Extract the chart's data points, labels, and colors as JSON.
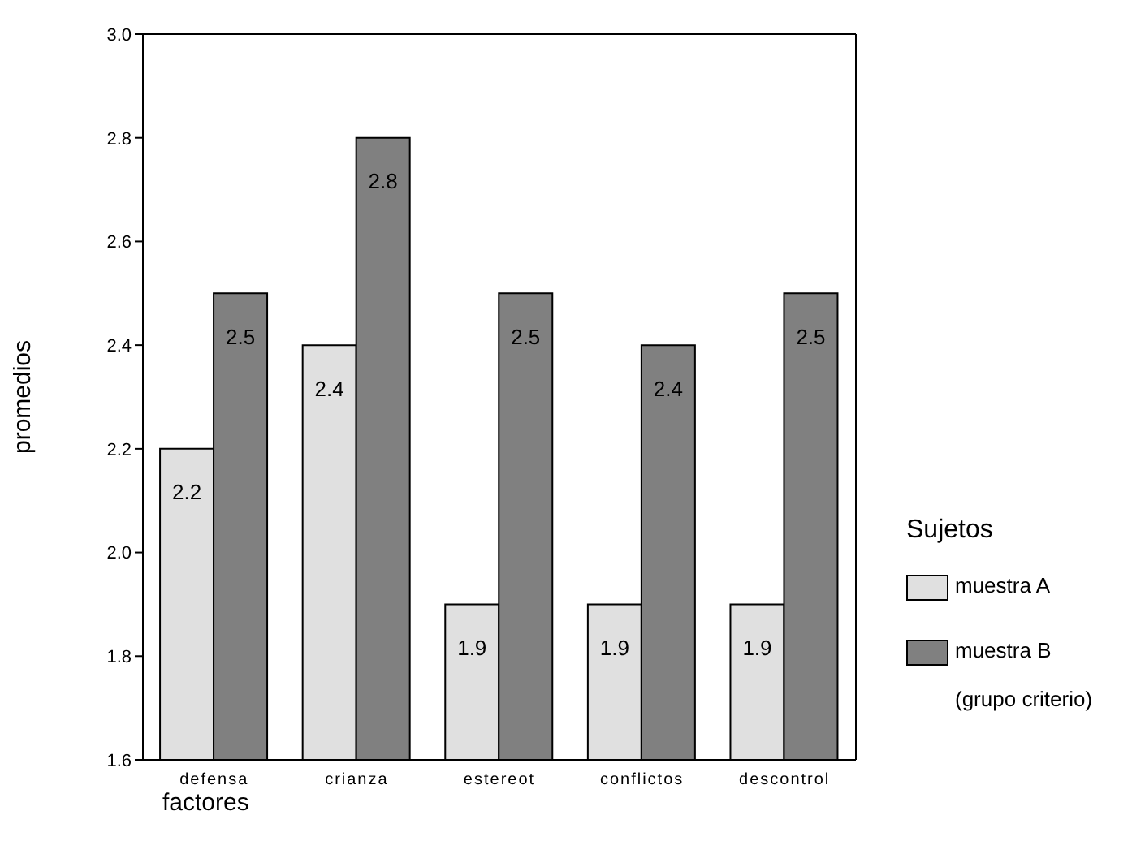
{
  "chart_data": {
    "type": "bar",
    "xlabel": "factores",
    "ylabel": "promedios",
    "legend_title": "Sujetos",
    "categories": [
      "defensa",
      "crianza",
      "estereot",
      "conflictos",
      "descontrol"
    ],
    "series": [
      {
        "name": "muestra A",
        "color": "#e0e0e0",
        "values": [
          2.2,
          2.4,
          1.9,
          1.9,
          1.9
        ]
      },
      {
        "name": "muestra B\n(grupo criterio)",
        "color": "#808080",
        "values": [
          2.5,
          2.8,
          2.5,
          2.4,
          2.5
        ]
      }
    ],
    "ylim": [
      1.6,
      3.0
    ],
    "yticks": [
      1.6,
      1.8,
      {
        "value": 2.0,
        "label": "2.0"
      },
      2.2,
      2.4,
      2.6,
      2.8,
      {
        "value": 3.0,
        "label": "3.0"
      }
    ],
    "data_labels": true,
    "legend": "right",
    "grid": false
  }
}
